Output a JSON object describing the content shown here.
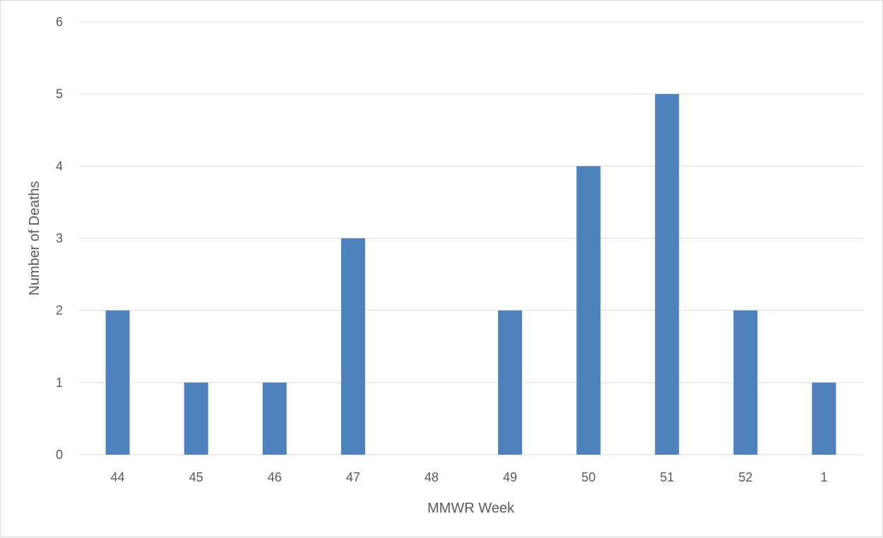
{
  "chart_data": {
    "type": "bar",
    "categories": [
      "44",
      "45",
      "46",
      "47",
      "48",
      "49",
      "50",
      "51",
      "52",
      "1"
    ],
    "values": [
      2,
      1,
      1,
      3,
      0,
      2,
      4,
      5,
      2,
      1
    ],
    "title": "",
    "xlabel": "MMWR Week",
    "ylabel": "Number of Deaths",
    "ylim": [
      0,
      6
    ],
    "yticks": [
      0,
      1,
      2,
      3,
      4,
      5,
      6
    ],
    "grid": true,
    "legend": "none",
    "bar_color": "#4f81bd",
    "grid_color": "#d9d9d9"
  }
}
